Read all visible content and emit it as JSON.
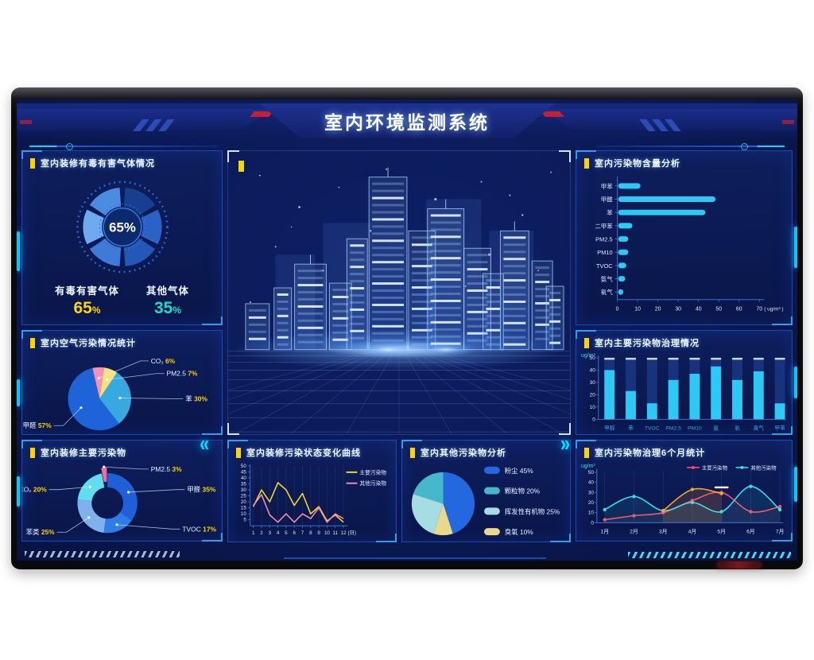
{
  "header": {
    "title": "室内环境监测系统"
  },
  "colors": {
    "accent_yellow": "#ffd200",
    "accent_cyan": "#00d0ff",
    "bar_cyan": "#2ec8f4",
    "value_teal": "#14e0c8",
    "panel_border": "#1e46b4"
  },
  "panels": {
    "p1": {
      "title": "室内装修有毒有害气体情况",
      "items": [
        {
          "label": "有毒有害气体",
          "value": "65",
          "unit": "%"
        },
        {
          "label": "其他气体",
          "value": "35",
          "unit": "%"
        }
      ]
    },
    "p2": {
      "title": "室内空气污染情况统计"
    },
    "p3": {
      "title": "室内装修主要污染物"
    },
    "p5": {
      "title": "室内装修污染状态变化曲线"
    },
    "p6": {
      "title": "室内其他污染物分析"
    },
    "p7": {
      "title": "室内污染物含量分析"
    },
    "p8": {
      "title": "室内主要污染物治理情况"
    },
    "p9": {
      "title": "室内污染物治理6个月统计"
    }
  },
  "chart_data": [
    {
      "id": "toxic-gauge",
      "type": "pie",
      "title": "室内装修有毒有害气体情况",
      "donut": true,
      "center_label": "65%",
      "slices": [
        {
          "label": "有毒有害气体",
          "value": 65,
          "color": "#ffd200"
        },
        {
          "label": "其他气体",
          "value": 35,
          "color": "#14e0c8"
        }
      ]
    },
    {
      "id": "air-pollution-pie",
      "type": "pie",
      "title": "室内空气污染情况统计",
      "slices": [
        {
          "label": "CO₂",
          "value": 6,
          "color": "#f590b6"
        },
        {
          "label": "PM2.5",
          "value": 7,
          "color": "#f7e27a"
        },
        {
          "label": "苯",
          "value": 30,
          "color": "#37a8e0"
        },
        {
          "label": "甲醛",
          "value": 57,
          "color": "#1e63d8"
        }
      ]
    },
    {
      "id": "main-pollutants-donut",
      "type": "pie",
      "title": "室内装修主要污染物",
      "donut": true,
      "slices": [
        {
          "label": "PM2.5",
          "value": 3,
          "color": "#f06e9c",
          "explode": true
        },
        {
          "label": "甲醛",
          "value": 35,
          "color": "#1f5fd8"
        },
        {
          "label": "TVOC",
          "value": 17,
          "color": "#2e7ce8"
        },
        {
          "label": "苯类",
          "value": 25,
          "color": "#7fb2ec"
        },
        {
          "label": "CO₂",
          "value": 20,
          "color": "#5fdef0"
        }
      ]
    },
    {
      "id": "pollution-trend",
      "type": "line",
      "title": "室内装修污染状态变化曲线",
      "x": [
        "1",
        "2",
        "3",
        "4",
        "5",
        "6",
        "7",
        "8",
        "9",
        "10",
        "11",
        "12"
      ],
      "x_unit": "(日)",
      "ylim": [
        0,
        50
      ],
      "yticks": [
        5,
        10,
        15,
        20,
        25,
        30,
        35,
        40,
        45,
        50
      ],
      "grid": "vertical",
      "legend_position": "top-right",
      "series": [
        {
          "name": "主要污染物",
          "color": "#f5d52a",
          "values": [
            16,
            30,
            20,
            36,
            30,
            17,
            27,
            10,
            16,
            4,
            9,
            3
          ]
        },
        {
          "name": "其他污染物",
          "color": "#f08bb0",
          "values": [
            17,
            26,
            9,
            3,
            10,
            3,
            10,
            6,
            15,
            3,
            10,
            6
          ]
        }
      ]
    },
    {
      "id": "other-pollutants-pie",
      "type": "pie",
      "title": "室内其他污染物分析",
      "legend_position": "right",
      "slices": [
        {
          "label": "粉尘",
          "value": 45,
          "color": "#2468e0"
        },
        {
          "label": "颗粒物",
          "value": 20,
          "color": "#46b8cc"
        },
        {
          "label": "挥发性有机物",
          "value": 25,
          "color": "#a6dde2"
        },
        {
          "label": "臭氧",
          "value": 10,
          "color": "#ead98c"
        }
      ]
    },
    {
      "id": "content-hbar",
      "type": "bar",
      "orientation": "horizontal",
      "title": "室内污染物含量分析",
      "categories": [
        "甲苯",
        "甲醛",
        "苯",
        "二甲苯",
        "PM2.5",
        "PM10",
        "TVOC",
        "氨气",
        "氡气"
      ],
      "values": [
        11,
        48,
        43,
        7,
        5,
        5,
        4,
        3.5,
        2.5
      ],
      "xticks": [
        0,
        10,
        20,
        30,
        40,
        50,
        60,
        70
      ],
      "x_unit": "( ug/m³ )",
      "bar_color": "#2ec8f4"
    },
    {
      "id": "treatment-vbar",
      "type": "bar",
      "orientation": "vertical",
      "title": "室内主要污染物治理情况",
      "y_unit": "ug/m³",
      "categories": [
        "甲醛",
        "苯",
        "TVOC",
        "PM2.5",
        "PM10",
        "氨",
        "氡",
        "臭气",
        "甲苯"
      ],
      "values": [
        40,
        23,
        13,
        32,
        37,
        43,
        32,
        39,
        13
      ],
      "ylim": [
        0,
        50
      ],
      "yticks": [
        0,
        10,
        20,
        30,
        40,
        50
      ],
      "bar_color": "#2ec8f4",
      "track_color": "#16337c"
    },
    {
      "id": "six-month-line",
      "type": "line",
      "title": "室内污染物治理6个月统计",
      "y_unit": "ug/m³",
      "x": [
        "1月",
        "2月",
        "3月",
        "4月",
        "5月",
        "6月",
        "7月"
      ],
      "ylim": [
        0,
        50
      ],
      "yticks": [
        0,
        10,
        20,
        30,
        40,
        50
      ],
      "grid": "vertical",
      "legend_position": "top",
      "series": [
        {
          "name": "主要污染物",
          "color": "#ff4d6d",
          "values": [
            3,
            7,
            10,
            22,
            30,
            11,
            16
          ]
        },
        {
          "name": "其他污染物",
          "color": "#35e0e8",
          "values": [
            13,
            26,
            12,
            20,
            11,
            36,
            13
          ]
        },
        {
          "name": "",
          "color": "#f5a623",
          "decorative": true,
          "values": [
            null,
            null,
            12,
            33,
            29,
            null,
            null
          ]
        }
      ],
      "marker_dash": {
        "x_index": 4,
        "y": 35
      }
    }
  ]
}
